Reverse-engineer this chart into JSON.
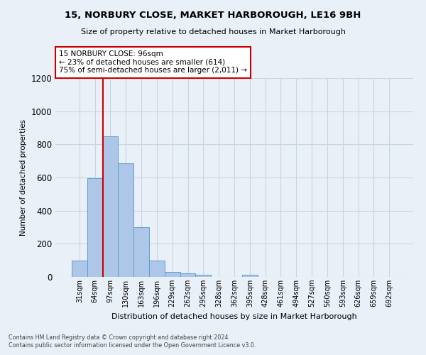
{
  "title": "15, NORBURY CLOSE, MARKET HARBOROUGH, LE16 9BH",
  "subtitle": "Size of property relative to detached houses in Market Harborough",
  "xlabel": "Distribution of detached houses by size in Market Harborough",
  "ylabel": "Number of detached properties",
  "categories": [
    "31sqm",
    "64sqm",
    "97sqm",
    "130sqm",
    "163sqm",
    "196sqm",
    "229sqm",
    "262sqm",
    "295sqm",
    "328sqm",
    "362sqm",
    "395sqm",
    "428sqm",
    "461sqm",
    "494sqm",
    "527sqm",
    "560sqm",
    "593sqm",
    "626sqm",
    "659sqm",
    "692sqm"
  ],
  "values": [
    100,
    595,
    850,
    685,
    300,
    100,
    32,
    22,
    12,
    0,
    0,
    12,
    0,
    0,
    0,
    0,
    0,
    0,
    0,
    0,
    0
  ],
  "bar_color": "#aec6e8",
  "bar_edge_color": "#5a9fd4",
  "grid_color": "#c8d4e4",
  "vline_color": "#cc0000",
  "vline_x_idx": 2,
  "annotation_text": "15 NORBURY CLOSE: 96sqm\n← 23% of detached houses are smaller (614)\n75% of semi-detached houses are larger (2,011) →",
  "annotation_box_color": "#ffffff",
  "annotation_box_edge": "#cc0000",
  "ylim": [
    0,
    1200
  ],
  "yticks": [
    0,
    200,
    400,
    600,
    800,
    1000,
    1200
  ],
  "footnote1": "Contains HM Land Registry data © Crown copyright and database right 2024.",
  "footnote2": "Contains public sector information licensed under the Open Government Licence v3.0.",
  "bg_color": "#eaf0f8"
}
